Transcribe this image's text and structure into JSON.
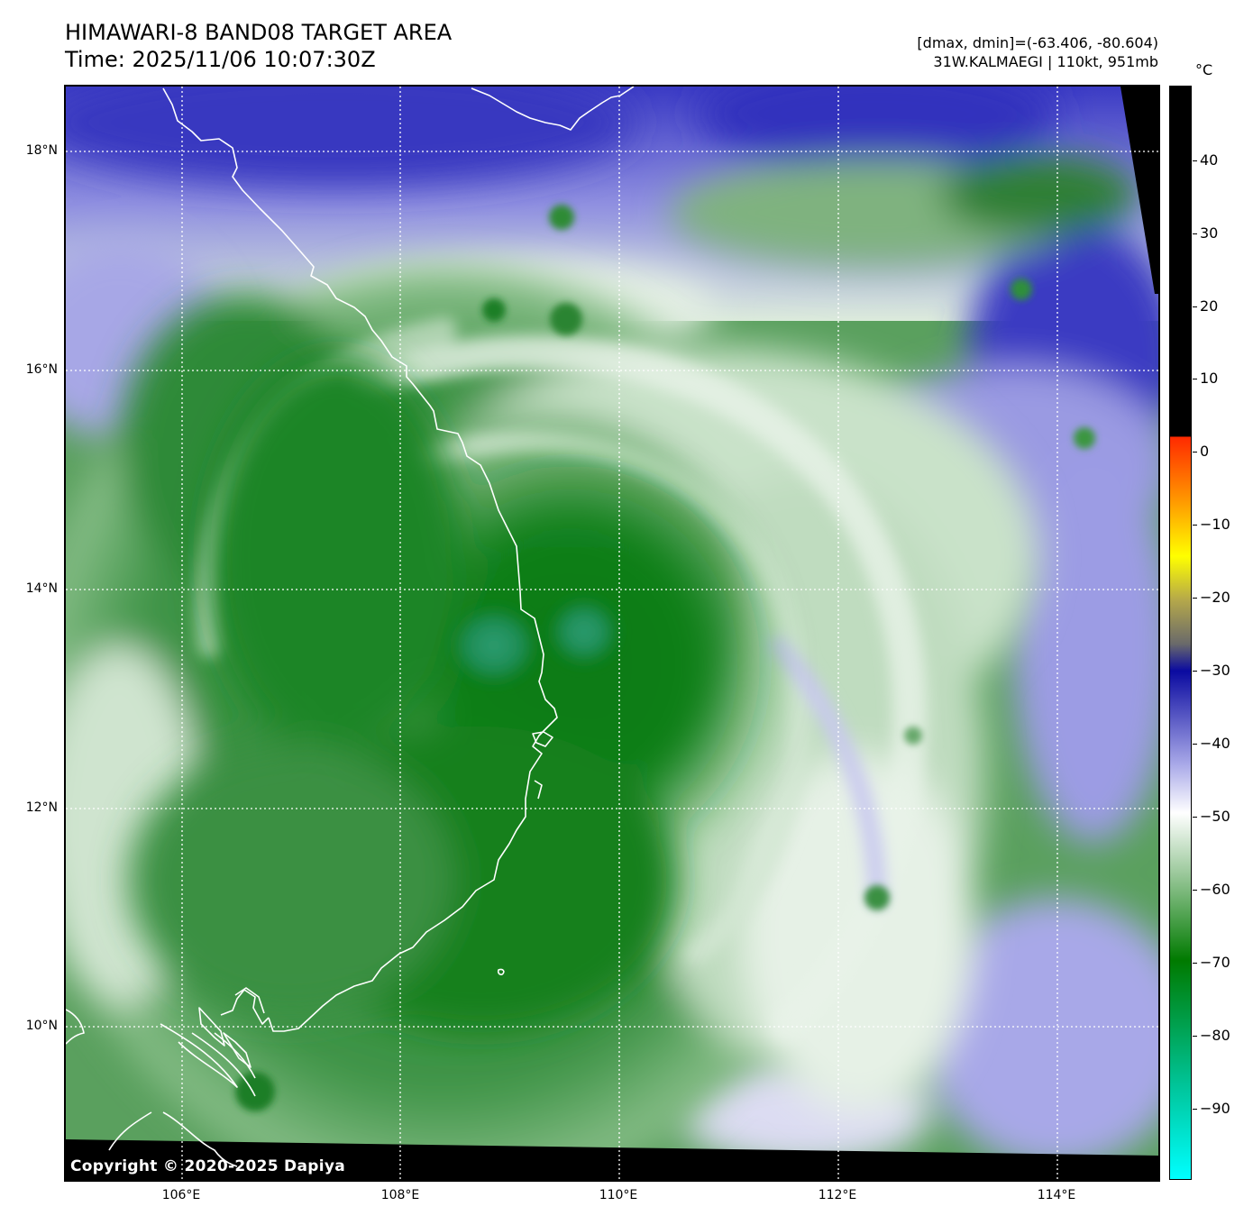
{
  "header": {
    "title_line1": "HIMAWARI-8 BAND08 TARGET AREA",
    "title_line2": "Time: 2025/11/06 10:07:30Z",
    "range_text": "[dmax, dmin]=(-63.406, -80.604)",
    "storm_text": "31W.KALMAEGI | 110kt, 951mb"
  },
  "axes": {
    "lat_labels": [
      "18°N",
      "16°N",
      "14°N",
      "12°N",
      "10°N"
    ],
    "lon_labels": [
      "106°E",
      "108°E",
      "110°E",
      "112°E",
      "114°E"
    ]
  },
  "colorbar": {
    "unit": "°C",
    "ticks": [
      "40",
      "30",
      "20",
      "10",
      "0",
      "−10",
      "−20",
      "−30",
      "−40",
      "−50",
      "−60",
      "−70",
      "−80",
      "−90"
    ],
    "colors": {
      "black": "#000000",
      "red": "#ff2a00",
      "orange": "#ff9a00",
      "yellow": "#ffff00",
      "olive": "#b5a84a",
      "gray": "#6a6a6a",
      "navy": "#0a0aa0",
      "lavender": "#a8a8e8",
      "white": "#ffffff",
      "light_green": "#9cc99c",
      "green": "#007a00",
      "teal": "#00c8a0",
      "cyan": "#00ffff"
    }
  },
  "map": {
    "colors": {
      "deep_green": "#0d7a16",
      "mid_green": "#4a9a52",
      "pale_green": "#c3dfc3",
      "white_cloud": "#eef5ee",
      "lavender": "#a4a4e6",
      "blue": "#3232bf",
      "eye_teal": "#2f9e74",
      "coast": "#ffffff"
    }
  },
  "footer": {
    "copyright": "Copyright © 2020-2025 Dapiya"
  }
}
